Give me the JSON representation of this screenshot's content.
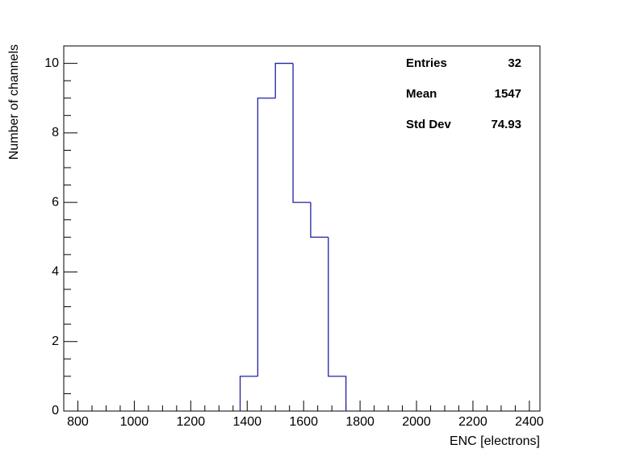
{
  "chart_data": {
    "type": "histogram",
    "xlabel": "ENC [electrons]",
    "ylabel": "Number of channels",
    "bins": [
      1375,
      1437.5,
      1500,
      1562.5,
      1625,
      1687.5,
      1750
    ],
    "values": [
      1,
      9,
      10,
      6,
      5,
      1
    ],
    "color": "#2020a0",
    "xlim": [
      750,
      2437.5
    ],
    "ylim": [
      0,
      10.5
    ],
    "xticks": [
      800,
      1000,
      1200,
      1400,
      1600,
      1800,
      2000,
      2200,
      2400
    ],
    "yticks": [
      0,
      2,
      4,
      6,
      8,
      10
    ],
    "stats": [
      {
        "label": "Entries",
        "value": 32
      },
      {
        "label": "Mean",
        "value": 1547
      },
      {
        "label": "Std Dev",
        "value": 74.93
      }
    ]
  }
}
